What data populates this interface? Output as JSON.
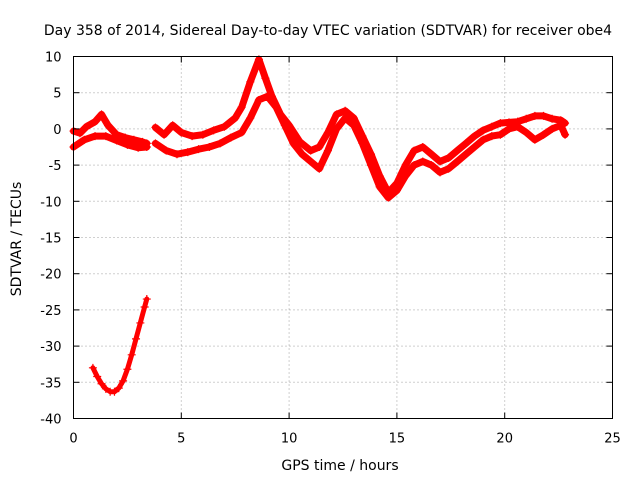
{
  "chart_data": {
    "type": "scatter",
    "title": "Day 358 of 2014, Sidereal Day-to-day VTEC variation (SDTVAR) for receiver obe4",
    "xlabel": "GPS time / hours",
    "ylabel": "SDTVAR / TECUs",
    "xlim": [
      0,
      25
    ],
    "ylim": [
      -40,
      10
    ],
    "xticks": [
      0,
      5,
      10,
      15,
      20,
      25
    ],
    "yticks": [
      -40,
      -35,
      -30,
      -25,
      -20,
      -15,
      -10,
      -5,
      0,
      5,
      10
    ],
    "grid": true,
    "color": "#ff0000",
    "marker": "plus",
    "series": [
      {
        "name": "main-band-upper",
        "x": [
          0.0,
          0.3,
          0.6,
          1.0,
          1.3,
          1.6,
          2.0,
          2.4,
          2.8,
          3.2,
          3.4
        ],
        "y": [
          -0.3,
          -0.6,
          0.3,
          1.0,
          2.0,
          0.5,
          -0.8,
          -1.2,
          -1.5,
          -1.8,
          -2.0
        ]
      },
      {
        "name": "main-band-lower",
        "x": [
          0.0,
          0.5,
          1.0,
          1.5,
          2.0,
          2.5,
          3.0,
          3.4
        ],
        "y": [
          -2.5,
          -1.5,
          -1.0,
          -1.0,
          -1.6,
          -2.2,
          -2.6,
          -2.5
        ]
      },
      {
        "name": "afternoon-upper",
        "x": [
          3.8,
          4.2,
          4.6,
          5.0,
          5.5,
          6.0,
          6.5,
          7.0,
          7.5,
          7.8,
          8.2,
          8.6,
          8.9,
          9.2,
          9.6,
          10.0,
          10.5,
          11.0,
          11.4,
          11.8,
          12.2,
          12.6,
          13.0,
          13.4,
          13.8,
          14.2,
          14.6,
          15.0,
          15.4,
          15.8,
          16.2,
          16.6,
          17.0,
          17.4,
          17.8,
          18.2,
          18.6,
          19.0,
          19.4,
          19.8,
          20.2,
          20.6,
          21.0,
          21.4,
          21.8,
          22.2,
          22.6,
          22.8
        ],
        "y": [
          0.2,
          -0.8,
          0.5,
          -0.5,
          -1.0,
          -0.8,
          -0.2,
          0.3,
          1.5,
          3.0,
          6.5,
          9.6,
          7.0,
          4.5,
          2.0,
          0.5,
          -1.8,
          -3.0,
          -2.5,
          -0.5,
          2.0,
          2.5,
          1.5,
          -1.0,
          -3.5,
          -6.5,
          -8.8,
          -7.5,
          -5.0,
          -3.0,
          -2.5,
          -3.5,
          -4.5,
          -4.0,
          -3.0,
          -2.0,
          -1.0,
          -0.2,
          0.3,
          0.8,
          0.9,
          1.0,
          1.4,
          1.8,
          1.8,
          1.4,
          1.2,
          0.8
        ]
      },
      {
        "name": "afternoon-lower",
        "x": [
          3.8,
          4.3,
          4.8,
          5.3,
          5.8,
          6.3,
          6.8,
          7.3,
          7.8,
          8.2,
          8.6,
          9.0,
          9.4,
          9.8,
          10.2,
          10.6,
          11.0,
          11.4,
          11.8,
          12.2,
          12.6,
          13.0,
          13.4,
          13.8,
          14.2,
          14.6,
          15.0,
          15.4,
          15.8,
          16.2,
          16.6,
          17.0,
          17.4,
          17.8,
          18.2,
          18.6,
          19.0,
          19.4,
          19.8,
          20.2,
          20.6,
          21.0,
          21.4,
          21.8,
          22.2,
          22.6,
          22.8
        ],
        "y": [
          -2.0,
          -3.0,
          -3.5,
          -3.2,
          -2.8,
          -2.5,
          -2.0,
          -1.2,
          -0.5,
          1.5,
          4.0,
          4.5,
          3.0,
          0.5,
          -2.0,
          -3.5,
          -4.5,
          -5.5,
          -3.0,
          0.0,
          1.5,
          0.5,
          -2.0,
          -5.0,
          -8.0,
          -9.5,
          -8.5,
          -6.5,
          -5.0,
          -4.5,
          -5.0,
          -6.0,
          -5.5,
          -4.5,
          -3.5,
          -2.5,
          -1.5,
          -1.0,
          -0.8,
          0.0,
          0.3,
          -0.5,
          -1.5,
          -0.8,
          0.0,
          0.5,
          -0.8
        ]
      },
      {
        "name": "outlier-curve",
        "x": [
          0.9,
          1.1,
          1.3,
          1.5,
          1.7,
          1.9,
          2.1,
          2.3,
          2.5,
          2.7,
          2.9,
          3.1,
          3.3,
          3.4
        ],
        "y": [
          -33.0,
          -34.2,
          -35.2,
          -35.9,
          -36.3,
          -36.3,
          -35.8,
          -34.8,
          -33.2,
          -31.2,
          -29.0,
          -26.8,
          -24.6,
          -23.5
        ]
      }
    ]
  }
}
